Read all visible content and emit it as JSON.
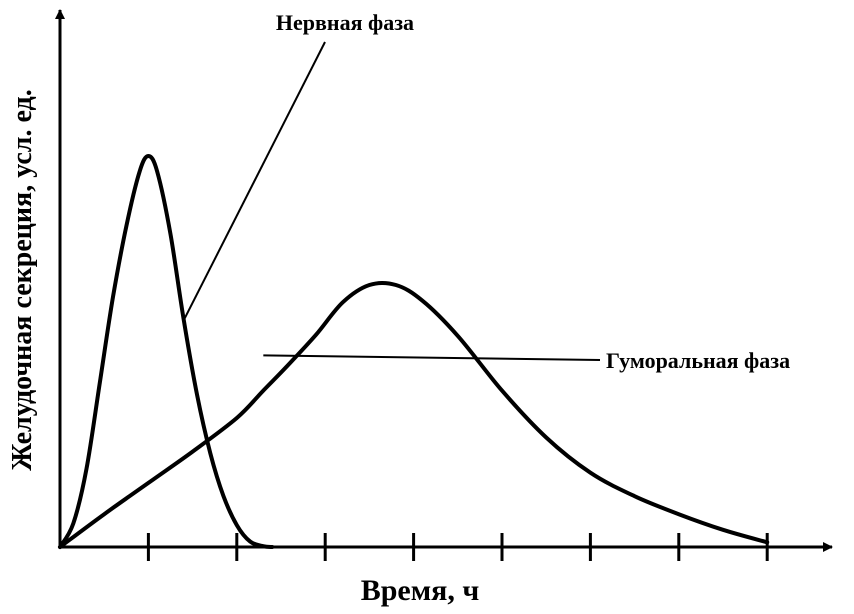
{
  "chart_data": {
    "type": "line",
    "title": "",
    "xlabel": "Время, ч",
    "ylabel": "Желудочная секреция, усл. ед.",
    "xlim": [
      0,
      8
    ],
    "ylim": [
      0,
      5
    ],
    "x_ticks": [
      1,
      2,
      3,
      4,
      5,
      6,
      7,
      8
    ],
    "x_tick_labels_shown": false,
    "y_ticks_shown": false,
    "grid": false,
    "line_color": "#000000",
    "series": [
      {
        "name": "Нервная фаза",
        "x": [
          0,
          0.15,
          0.3,
          0.45,
          0.6,
          0.75,
          0.9,
          1.0,
          1.1,
          1.25,
          1.4,
          1.55,
          1.7,
          1.85,
          2.0,
          2.15,
          2.3,
          2.4
        ],
        "y": [
          0,
          0.3,
          1.0,
          2.1,
          3.2,
          4.1,
          4.8,
          5.0,
          4.8,
          4.0,
          2.9,
          1.95,
          1.2,
          0.65,
          0.28,
          0.07,
          0.01,
          0
        ]
      },
      {
        "name": "Гуморальная фаза",
        "x": [
          0,
          0.5,
          1.0,
          1.5,
          2.0,
          2.3,
          2.6,
          2.9,
          3.2,
          3.5,
          3.8,
          4.1,
          4.5,
          5.0,
          5.5,
          6.0,
          6.5,
          7.0,
          7.5,
          8.0
        ],
        "y": [
          0,
          0.42,
          0.82,
          1.22,
          1.65,
          2.0,
          2.35,
          2.72,
          3.13,
          3.35,
          3.35,
          3.15,
          2.7,
          2.0,
          1.4,
          0.95,
          0.65,
          0.42,
          0.22,
          0.06
        ]
      }
    ],
    "annotations": [
      {
        "text": "Нервная фаза",
        "series": 0,
        "x": 1.4,
        "y": 2.9
      },
      {
        "text": "Гуморальная фаза",
        "series": 1,
        "x": 2.3,
        "y": 2.45
      }
    ]
  }
}
